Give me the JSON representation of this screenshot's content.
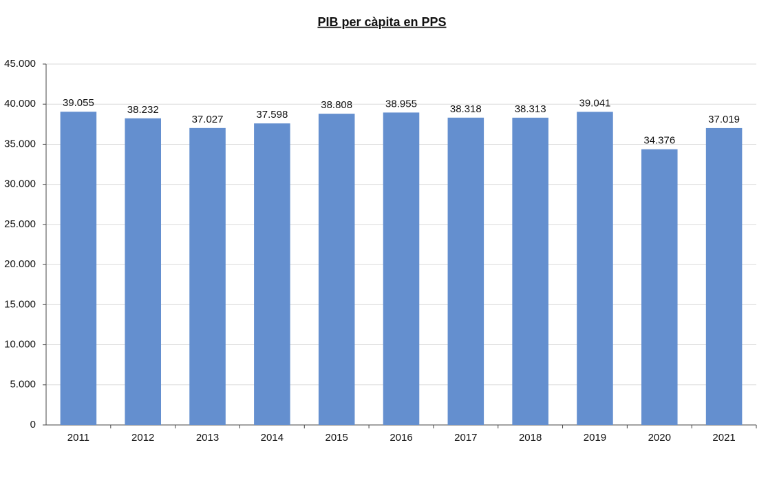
{
  "chart_data": {
    "type": "bar",
    "title": "PIB per càpita en PPS",
    "categories": [
      "2011",
      "2012",
      "2013",
      "2014",
      "2015",
      "2016",
      "2017",
      "2018",
      "2019",
      "2020",
      "2021"
    ],
    "values": [
      39055,
      38232,
      37027,
      37598,
      38808,
      38955,
      38318,
      38313,
      39041,
      34376,
      37019
    ],
    "value_labels": [
      "39.055",
      "38.232",
      "37.027",
      "37.598",
      "38.808",
      "38.955",
      "38.318",
      "38.313",
      "39.041",
      "34.376",
      "37.019"
    ],
    "color": "#648fcf",
    "ylim": [
      0,
      45000
    ],
    "yticks": [
      0,
      {
        "value": 5000,
        "label": "5.000"
      },
      {
        "value": 10000,
        "label": "10.000"
      },
      {
        "value": 15000,
        "label": "15.000"
      },
      {
        "value": 20000,
        "label": "20.000"
      },
      {
        "value": 25000,
        "label": "25.000"
      },
      {
        "value": 30000,
        "label": "30.000"
      },
      {
        "value": 35000,
        "label": "35.000"
      },
      {
        "value": 40000,
        "label": "40.000"
      },
      {
        "value": 45000,
        "label": "45.000"
      }
    ],
    "grid": true
  }
}
